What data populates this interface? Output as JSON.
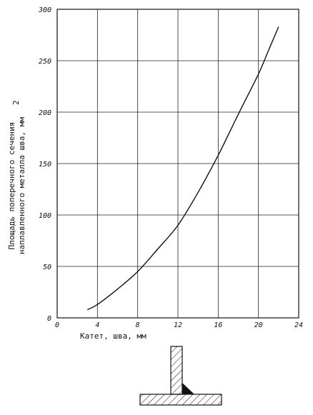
{
  "chart_data": {
    "type": "line",
    "xlabel": "Катет, шва, мм",
    "ylabel": [
      "Площадь поперечного сечения",
      "наплавленного металла шва, мм"
    ],
    "ylabel_superscript": "2",
    "xlim": [
      0,
      24
    ],
    "ylim": [
      0,
      300
    ],
    "x_ticks": [
      "0",
      "4",
      "8",
      "12",
      "16",
      "20",
      "24"
    ],
    "y_ticks": [
      "0",
      "50",
      "100",
      "150",
      "200",
      "250",
      "300"
    ],
    "grid": true,
    "series": [
      {
        "x": [
          3,
          4,
          6,
          8,
          10,
          12,
          14,
          16,
          18,
          20,
          21,
          22
        ],
        "y": [
          8,
          13,
          28,
          45,
          67,
          90,
          122,
          158,
          198,
          237,
          260,
          283
        ]
      }
    ],
    "stroke_color": "#111111"
  }
}
